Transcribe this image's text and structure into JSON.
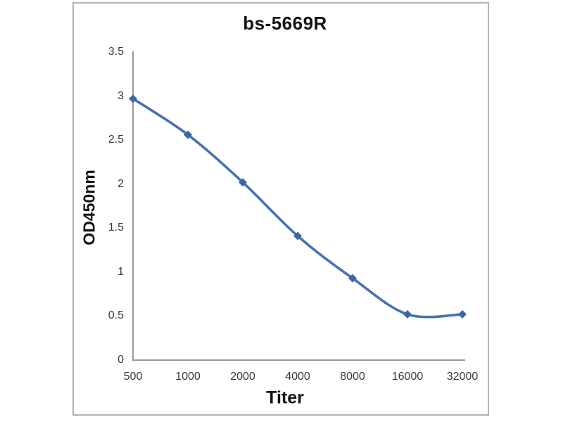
{
  "chart_data": {
    "type": "line",
    "title": "bs-5669R",
    "xlabel": "Titer",
    "ylabel": "OD450nm",
    "categories": [
      "500",
      "1000",
      "2000",
      "4000",
      "8000",
      "16000",
      "32000"
    ],
    "values": [
      2.97,
      2.56,
      2.02,
      1.41,
      0.93,
      0.52,
      0.52
    ],
    "ylim": [
      0,
      3.5
    ],
    "ytick_step": 0.5,
    "ytick_labels": [
      "0",
      "0.5",
      "1",
      "1.5",
      "2",
      "2.5",
      "3",
      "3.5"
    ],
    "grid": false,
    "legend_position": "none",
    "line_smooth": true,
    "marker": "diamond",
    "colors": {
      "line": "#4672b2",
      "marker": "#3d66a8",
      "axis": "#9a9a9a",
      "tick_text": "#3a3a3a",
      "title_text": "#141414",
      "frame_border": "#b1b1b1",
      "background": "#ffffff"
    }
  }
}
